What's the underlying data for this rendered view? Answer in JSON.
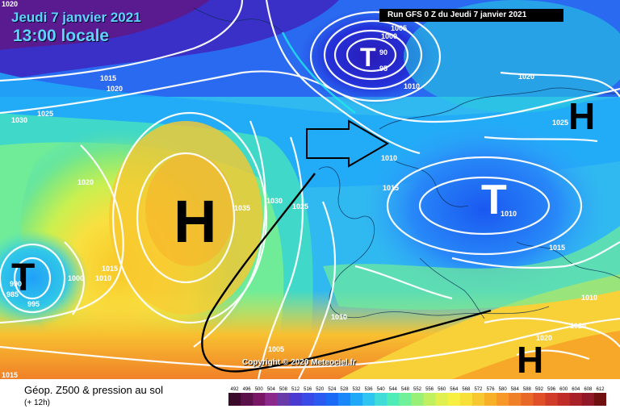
{
  "header": {
    "date": "Jeudi 7 janvier 2021",
    "time": "13:00 locale",
    "run": "Run GFS 0 Z du Jeudi 7 janvier 2021"
  },
  "footer": {
    "title": "Géop. Z500 & pression au sol",
    "subtitle": "(+ 12h)",
    "copyright": "Copyright © 2020 Meteociel.fr"
  },
  "pressure_systems": [
    {
      "id": "high-atlantic",
      "label": "H"
    },
    {
      "id": "low-west",
      "label": "T"
    },
    {
      "id": "low-europe",
      "label": "T"
    },
    {
      "id": "high-east",
      "label": "H"
    },
    {
      "id": "high-southeast",
      "label": "H"
    },
    {
      "id": "low-north",
      "label": "T"
    }
  ],
  "isobar_labels": [
    "1020",
    "1015",
    "1020",
    "1030",
    "1025",
    "1020",
    "1035",
    "1030",
    "1025",
    "1015",
    "1010",
    "1005",
    "1000",
    "90",
    "95",
    "1010",
    "1020",
    "1025",
    "1010",
    "1015",
    "990",
    "985",
    "995",
    "1000",
    "1010",
    "1015",
    "1010",
    "1010",
    "1020",
    "1020",
    "1005",
    "1015"
  ],
  "scale": {
    "values": [
      "492",
      "496",
      "500",
      "504",
      "508",
      "512",
      "516",
      "520",
      "524",
      "528",
      "532",
      "536",
      "540",
      "544",
      "548",
      "552",
      "556",
      "560",
      "564",
      "568",
      "572",
      "576",
      "580",
      "584",
      "588",
      "592",
      "596",
      "600",
      "604",
      "608",
      "612"
    ],
    "colors": [
      "#3b0a2a",
      "#5a1048",
      "#7a1666",
      "#8b2a8a",
      "#6a3aa8",
      "#4a3ad0",
      "#3a4ae6",
      "#2a5af0",
      "#1a6af6",
      "#1a88f8",
      "#20a8f8",
      "#30c4f0",
      "#40dcd8",
      "#50ecb8",
      "#70f098",
      "#98f078",
      "#c0f060",
      "#e0f050",
      "#f8f040",
      "#f8e038",
      "#f8c830",
      "#f8b028",
      "#f89828",
      "#f08028",
      "#e86828",
      "#e05028",
      "#d03c28",
      "#c02c28",
      "#a82028",
      "#901828",
      "#701010"
    ]
  }
}
